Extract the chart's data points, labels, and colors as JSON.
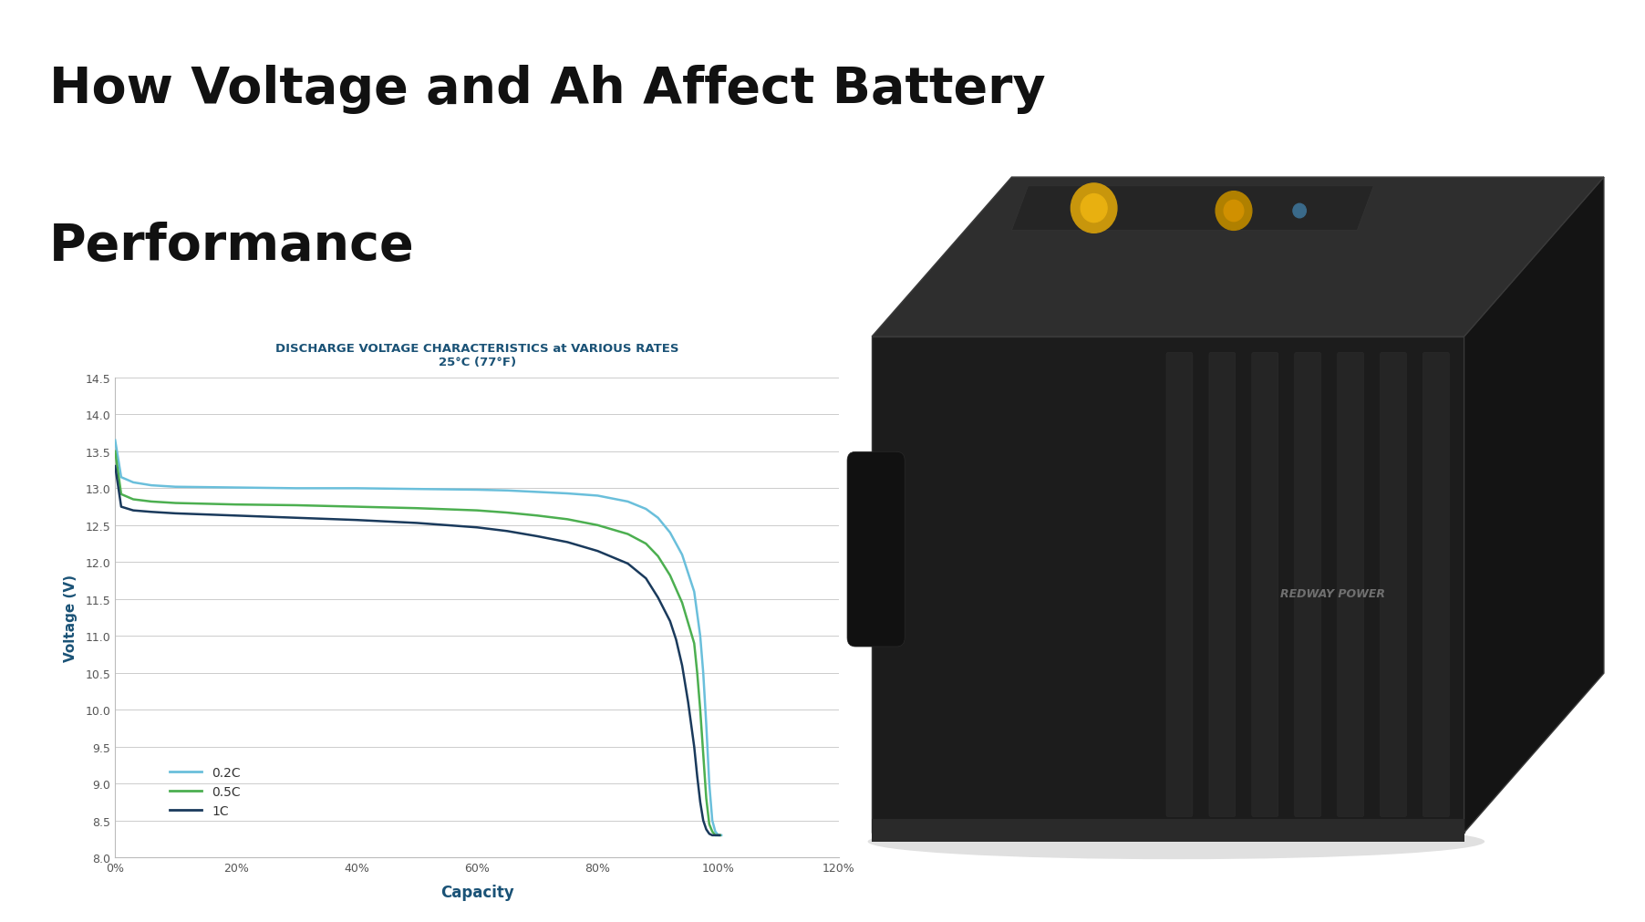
{
  "title_line1": "How Voltage and Ah Affect Battery",
  "title_line2": "Performance",
  "chart_title_line1": "DISCHARGE VOLTAGE CHARACTERISTICS at VARIOUS RATES",
  "chart_title_line2": "25°C (77°F)",
  "xlabel": "Capacity",
  "ylabel": "Voltage (V)",
  "xlim": [
    0,
    1.2
  ],
  "ylim": [
    8.0,
    14.5
  ],
  "yticks": [
    8.0,
    8.5,
    9.0,
    9.5,
    10.0,
    10.5,
    11.0,
    11.5,
    12.0,
    12.5,
    13.0,
    13.5,
    14.0,
    14.5
  ],
  "xtick_labels": [
    "0%",
    "20%",
    "40%",
    "60%",
    "80%",
    "100%",
    "120%"
  ],
  "xtick_values": [
    0,
    0.2,
    0.4,
    0.6,
    0.8,
    1.0,
    1.2
  ],
  "background_color": "#ffffff",
  "chart_bg_color": "#ffffff",
  "grid_color": "#cccccc",
  "title_color": "#111111",
  "chart_title_color": "#1a5276",
  "axis_label_color": "#1a5276",
  "tick_label_color": "#555555",
  "line_02C_color": "#6abfdb",
  "line_05C_color": "#4caf50",
  "line_1C_color": "#1a3a5c",
  "legend_labels": [
    "0.2C",
    "0.5C",
    "1C"
  ],
  "curve_02C_x": [
    0,
    0.01,
    0.03,
    0.06,
    0.1,
    0.2,
    0.3,
    0.4,
    0.5,
    0.6,
    0.65,
    0.7,
    0.75,
    0.8,
    0.85,
    0.88,
    0.9,
    0.92,
    0.94,
    0.96,
    0.97,
    0.975,
    0.98,
    0.985,
    0.99,
    0.995,
    1.0,
    1.005
  ],
  "curve_02C_y": [
    13.65,
    13.15,
    13.08,
    13.04,
    13.02,
    13.01,
    13.0,
    13.0,
    12.99,
    12.98,
    12.97,
    12.95,
    12.93,
    12.9,
    12.82,
    12.72,
    12.6,
    12.4,
    12.1,
    11.6,
    11.0,
    10.5,
    9.8,
    9.0,
    8.5,
    8.35,
    8.3,
    8.3
  ],
  "curve_05C_x": [
    0,
    0.01,
    0.03,
    0.06,
    0.1,
    0.2,
    0.3,
    0.4,
    0.5,
    0.6,
    0.65,
    0.7,
    0.75,
    0.8,
    0.85,
    0.88,
    0.9,
    0.92,
    0.94,
    0.96,
    0.965,
    0.97,
    0.975,
    0.98,
    0.985,
    0.99,
    0.995,
    1.0,
    1.003
  ],
  "curve_05C_y": [
    13.5,
    12.92,
    12.85,
    12.82,
    12.8,
    12.78,
    12.77,
    12.75,
    12.73,
    12.7,
    12.67,
    12.63,
    12.58,
    12.5,
    12.38,
    12.25,
    12.08,
    11.82,
    11.45,
    10.9,
    10.5,
    10.0,
    9.4,
    8.8,
    8.45,
    8.35,
    8.3,
    8.3,
    8.3
  ],
  "curve_1C_x": [
    0,
    0.01,
    0.03,
    0.06,
    0.1,
    0.2,
    0.3,
    0.4,
    0.5,
    0.6,
    0.65,
    0.7,
    0.75,
    0.8,
    0.85,
    0.88,
    0.9,
    0.92,
    0.93,
    0.94,
    0.95,
    0.96,
    0.965,
    0.97,
    0.975,
    0.98,
    0.985,
    0.99,
    0.995,
    1.0,
    1.002
  ],
  "curve_1C_y": [
    13.3,
    12.75,
    12.7,
    12.68,
    12.66,
    12.63,
    12.6,
    12.57,
    12.53,
    12.47,
    12.42,
    12.35,
    12.27,
    12.15,
    11.98,
    11.78,
    11.52,
    11.2,
    10.95,
    10.6,
    10.1,
    9.5,
    9.1,
    8.75,
    8.5,
    8.38,
    8.32,
    8.3,
    8.3,
    8.3,
    8.3
  ]
}
